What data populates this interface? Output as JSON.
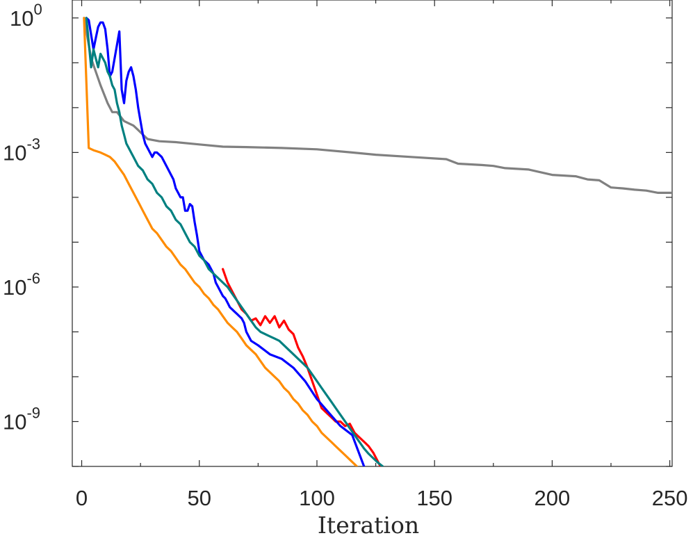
{
  "chart_data": {
    "type": "line",
    "xlabel": "Iteration",
    "ylabel": "",
    "title": "",
    "xlim": [
      -4,
      251
    ],
    "ylim": [
      -10.0,
      0.4
    ],
    "yscale": "log",
    "grid": false,
    "x_ticks": [
      0,
      50,
      100,
      150,
      200,
      250
    ],
    "x_tick_labels": [
      "0",
      "50",
      "100",
      "150",
      "200",
      "250"
    ],
    "y_ticks": [
      0,
      -3,
      -6,
      -9
    ],
    "y_tick_bases": [
      "10",
      "10",
      "10",
      "10"
    ],
    "y_tick_exponents": [
      "0",
      "-3",
      "-6",
      "-9"
    ],
    "series": [
      {
        "color": "#808080",
        "x": [
          1,
          4,
          8,
          11,
          13,
          15,
          18,
          20,
          22,
          24,
          26,
          28,
          30,
          33,
          40,
          50,
          60,
          70,
          85,
          100,
          115,
          125,
          140,
          155,
          160,
          170,
          175,
          180,
          190,
          200,
          210,
          215,
          220,
          225,
          230,
          235,
          240,
          245,
          251
        ],
        "y": [
          0,
          -0.9,
          -1.5,
          -1.9,
          -2.1,
          -2.1,
          -2.3,
          -2.35,
          -2.4,
          -2.5,
          -2.6,
          -2.7,
          -2.72,
          -2.75,
          -2.77,
          -2.82,
          -2.87,
          -2.88,
          -2.9,
          -2.93,
          -3.0,
          -3.05,
          -3.1,
          -3.15,
          -3.25,
          -3.28,
          -3.3,
          -3.35,
          -3.38,
          -3.5,
          -3.53,
          -3.6,
          -3.62,
          -3.78,
          -3.8,
          -3.83,
          -3.85,
          -3.9,
          -3.9
        ]
      },
      {
        "color": "#ff0000",
        "x": [
          60,
          62,
          64,
          66,
          68,
          70,
          72,
          74,
          76,
          78,
          80,
          82,
          84,
          86,
          88,
          90,
          92,
          94,
          96,
          98,
          100,
          102,
          104,
          106,
          108,
          110,
          112,
          114,
          116,
          118,
          120,
          122,
          124,
          127
        ],
        "y": [
          -5.6,
          -5.9,
          -6.1,
          -6.3,
          -6.5,
          -6.6,
          -6.75,
          -6.7,
          -6.85,
          -6.65,
          -6.8,
          -6.65,
          -6.9,
          -6.75,
          -6.95,
          -7.05,
          -7.35,
          -7.55,
          -7.8,
          -8.1,
          -8.4,
          -8.7,
          -8.8,
          -8.9,
          -9.0,
          -9.0,
          -9.1,
          -9.05,
          -9.25,
          -9.35,
          -9.45,
          -9.55,
          -9.7,
          -10.0
        ]
      },
      {
        "color": "#0000ff",
        "x": [
          2,
          3,
          5,
          6,
          7,
          8,
          9,
          10,
          11,
          12,
          13,
          14,
          15,
          16,
          17,
          18,
          19,
          20,
          21,
          22,
          23,
          24,
          25,
          26,
          27,
          28,
          29,
          30,
          31,
          32,
          33,
          34,
          35,
          36,
          37,
          38,
          39,
          40,
          41,
          42,
          43,
          44,
          45,
          46,
          47,
          48,
          49,
          50,
          52,
          54,
          55,
          56,
          57,
          58,
          59,
          60,
          61,
          62,
          63,
          64,
          65,
          66,
          67,
          68,
          69,
          70,
          72,
          75,
          80,
          85,
          90,
          95,
          100,
          105,
          110,
          115,
          120
        ],
        "y": [
          0,
          -0.05,
          -0.7,
          -0.45,
          -0.2,
          -0.1,
          -0.1,
          -0.25,
          -0.7,
          -1.3,
          -1.2,
          -0.9,
          -0.6,
          -0.3,
          -1.6,
          -1.9,
          -1.4,
          -1.2,
          -1.1,
          -1.3,
          -1.6,
          -2.0,
          -2.3,
          -2.6,
          -2.8,
          -2.9,
          -3.0,
          -3.1,
          -3.0,
          -3.0,
          -3.05,
          -3.1,
          -3.2,
          -3.3,
          -3.4,
          -3.5,
          -3.6,
          -3.8,
          -3.9,
          -4.0,
          -4.0,
          -4.3,
          -4.3,
          -4.15,
          -4.2,
          -4.55,
          -4.85,
          -5.2,
          -5.4,
          -5.5,
          -5.6,
          -5.7,
          -5.9,
          -6.0,
          -6.1,
          -6.2,
          -6.25,
          -6.35,
          -6.45,
          -6.5,
          -6.55,
          -6.6,
          -6.65,
          -6.7,
          -6.8,
          -7.0,
          -7.2,
          -7.3,
          -7.5,
          -7.6,
          -7.8,
          -8.1,
          -8.5,
          -8.8,
          -9.1,
          -9.3,
          -10.0
        ]
      },
      {
        "color": "#008080",
        "x": [
          2,
          4,
          5,
          6,
          7,
          8,
          9,
          10,
          11,
          12,
          13,
          14,
          15,
          16,
          17,
          18,
          19,
          20,
          21,
          22,
          24,
          26,
          28,
          30,
          32,
          34,
          36,
          38,
          40,
          42,
          44,
          46,
          48,
          50,
          52,
          54,
          56,
          58,
          60,
          62,
          64,
          66,
          68,
          70,
          72,
          74,
          76,
          78,
          80,
          82,
          84,
          86,
          88,
          90,
          92,
          94,
          96,
          98,
          100,
          102,
          104,
          106,
          108,
          110,
          112,
          114,
          116,
          118,
          120,
          122,
          124,
          126,
          128
        ],
        "y": [
          0,
          -1.1,
          -0.7,
          -0.9,
          -1.1,
          -0.8,
          -0.9,
          -1.0,
          -1.2,
          -1.3,
          -1.5,
          -1.6,
          -1.9,
          -2.1,
          -2.4,
          -2.6,
          -2.8,
          -2.9,
          -3.0,
          -3.1,
          -3.3,
          -3.4,
          -3.6,
          -3.7,
          -3.9,
          -4.0,
          -4.2,
          -4.3,
          -4.5,
          -4.6,
          -4.8,
          -5.0,
          -5.1,
          -5.3,
          -5.4,
          -5.6,
          -5.7,
          -5.8,
          -5.9,
          -6.0,
          -6.15,
          -6.3,
          -6.45,
          -6.6,
          -6.75,
          -6.9,
          -7.0,
          -7.05,
          -7.1,
          -7.15,
          -7.2,
          -7.3,
          -7.4,
          -7.5,
          -7.6,
          -7.7,
          -7.8,
          -7.95,
          -8.1,
          -8.25,
          -8.4,
          -8.55,
          -8.7,
          -8.85,
          -9.0,
          -9.15,
          -9.3,
          -9.45,
          -9.6,
          -9.72,
          -9.82,
          -9.92,
          -10.0
        ]
      },
      {
        "color": "#ff8c00",
        "x": [
          1,
          3,
          5,
          8,
          10,
          12,
          14,
          16,
          18,
          20,
          22,
          24,
          26,
          28,
          30,
          32,
          34,
          36,
          38,
          40,
          42,
          44,
          46,
          48,
          50,
          52,
          54,
          56,
          58,
          60,
          62,
          64,
          66,
          68,
          70,
          72,
          74,
          76,
          78,
          80,
          82,
          84,
          86,
          88,
          90,
          92,
          94,
          96,
          98,
          100,
          102,
          104,
          106,
          108,
          110,
          112,
          114,
          116,
          117
        ],
        "y": [
          0,
          -2.9,
          -2.95,
          -3.0,
          -3.05,
          -3.1,
          -3.2,
          -3.35,
          -3.5,
          -3.7,
          -3.9,
          -4.1,
          -4.3,
          -4.5,
          -4.7,
          -4.8,
          -4.95,
          -5.1,
          -5.2,
          -5.35,
          -5.5,
          -5.6,
          -5.75,
          -5.9,
          -6.0,
          -6.15,
          -6.25,
          -6.4,
          -6.5,
          -6.65,
          -6.8,
          -6.9,
          -7.0,
          -7.15,
          -7.3,
          -7.4,
          -7.5,
          -7.65,
          -7.8,
          -7.9,
          -8.0,
          -8.1,
          -8.25,
          -8.35,
          -8.5,
          -8.6,
          -8.75,
          -8.85,
          -9.0,
          -9.1,
          -9.25,
          -9.35,
          -9.45,
          -9.55,
          -9.65,
          -9.75,
          -9.85,
          -9.95,
          -10.0
        ]
      }
    ]
  }
}
